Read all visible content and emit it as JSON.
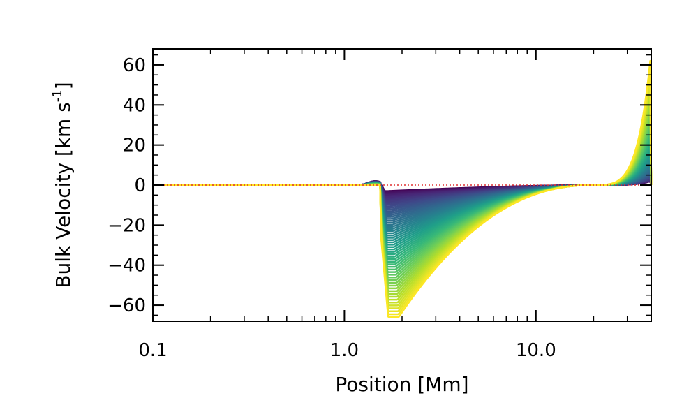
{
  "chart_data": {
    "type": "line",
    "title": "",
    "xlabel": "Position [Mm]",
    "ylabel": "Bulk Velocity [km s",
    "ylabel_superscript": "-1",
    "ylabel_close": "]",
    "xscale": "log",
    "xlim": [
      0.1,
      40
    ],
    "ylim": [
      -68,
      68
    ],
    "x_ticks": [
      {
        "value": 0.1,
        "label": "0.1"
      },
      {
        "value": 1.0,
        "label": "1.0"
      },
      {
        "value": 10.0,
        "label": "10.0"
      }
    ],
    "y_ticks": [
      {
        "value": -60,
        "label": "−60"
      },
      {
        "value": -40,
        "label": "−40"
      },
      {
        "value": -20,
        "label": "−20"
      },
      {
        "value": 0,
        "label": "0"
      },
      {
        "value": 20,
        "label": "20"
      },
      {
        "value": 40,
        "label": "40"
      },
      {
        "value": 60,
        "label": "60"
      }
    ],
    "reference_line": {
      "y": 0,
      "style": "dotted",
      "color": "#e03030"
    },
    "colormap": "viridis",
    "series_family": {
      "count": 60,
      "description": "time sequence of velocity profiles, early (dark purple) to late (yellow)",
      "front_position": 1.6,
      "shock_position": 20,
      "apex_position": 40,
      "min_velocity_range": [
        -3,
        -66
      ],
      "max_velocity_range": [
        2,
        67
      ]
    },
    "grid": false,
    "legend": "none"
  }
}
